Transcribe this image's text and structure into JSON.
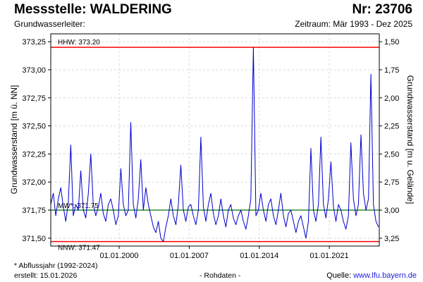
{
  "header": {
    "station_label": "Messstelle: WALDERING",
    "number_label": "Nr: 23706",
    "aquifer_label": "Grundwasserleiter:",
    "period_label": "Zeitraum: Mär 1993 - Dez 2025"
  },
  "footer": {
    "footnote": "* Abflussjahr (1992-2024)",
    "created": "erstellt:  15.01.2026",
    "raw": "- Rohdaten -",
    "source_prefix": "Quelle: ",
    "source_link": "www.lfu.bayern.de"
  },
  "colors": {
    "series": "#0000cc",
    "hhw": "#ff0000",
    "nnw": "#ff0000",
    "mw": "#2e8b2e",
    "grid": "#d9d9d9"
  },
  "chart_data": {
    "type": "line",
    "title": "",
    "ylabel": "Grundwasserstand [m ü. NN]",
    "y2label": "Grundwasserstand [m u. Gelände]",
    "ylim": [
      371.43,
      373.32
    ],
    "y2lim": [
      3.32,
      1.43
    ],
    "yticks": [
      371.5,
      371.75,
      372.0,
      372.25,
      372.5,
      372.75,
      373.0,
      373.25
    ],
    "ytick_labels": [
      "371,50",
      "371,75",
      "372,00",
      "372,25",
      "372,50",
      "372,75",
      "373,00",
      "373,25"
    ],
    "y2ticks": [
      3.25,
      3.0,
      2.75,
      2.5,
      2.25,
      2.0,
      1.75,
      1.5
    ],
    "y2tick_labels": [
      "3,25",
      "3,00",
      "2,75",
      "2,50",
      "2,25",
      "2,00",
      "1,75",
      "1,50"
    ],
    "xlim": [
      "1993-03-01",
      "2025-12-31"
    ],
    "xticks": [
      "2000-01-01",
      "2007-01-01",
      "2014-01-01",
      "2021-01-01"
    ],
    "xtick_labels": [
      "01.01.2000",
      "01.01.2007",
      "01.01.2014",
      "01.01.2021"
    ],
    "grid": true,
    "reference_lines": [
      {
        "key": "hhw",
        "label": "HHW: 373.20",
        "value": 373.2
      },
      {
        "key": "mw",
        "label": "MW*: 371.75",
        "value": 371.75
      },
      {
        "key": "nnw",
        "label": "NNW: 371.47",
        "value": 371.47
      }
    ],
    "series": [
      {
        "x": [
          "1993-03-01",
          "1993-06-01",
          "1993-09-01",
          "1993-12-01",
          "1994-03-01",
          "1994-06-01",
          "1994-09-01",
          "1994-12-01",
          "1995-03-01",
          "1995-06-01",
          "1995-09-01",
          "1995-12-01",
          "1996-03-01",
          "1996-06-01",
          "1996-09-01",
          "1996-12-01",
          "1997-03-01",
          "1997-06-01",
          "1997-09-01",
          "1997-12-01",
          "1998-03-01",
          "1998-06-01",
          "1998-09-01",
          "1998-12-01",
          "1999-03-01",
          "1999-06-01",
          "1999-09-01",
          "1999-12-01",
          "2000-03-01",
          "2000-06-01",
          "2000-09-01",
          "2000-12-01",
          "2001-03-01",
          "2001-06-01",
          "2001-09-01",
          "2001-12-01",
          "2002-03-01",
          "2002-06-01",
          "2002-09-01",
          "2002-12-01",
          "2003-03-01",
          "2003-06-01",
          "2003-09-01",
          "2003-12-01",
          "2004-03-01",
          "2004-06-01",
          "2004-09-01",
          "2004-12-01",
          "2005-03-01",
          "2005-06-01",
          "2005-09-01",
          "2005-12-01",
          "2006-03-01",
          "2006-06-01",
          "2006-09-01",
          "2006-12-01",
          "2007-03-01",
          "2007-06-01",
          "2007-09-01",
          "2007-12-01",
          "2008-03-01",
          "2008-06-01",
          "2008-09-01",
          "2008-12-01",
          "2009-03-01",
          "2009-06-01",
          "2009-09-01",
          "2009-12-01",
          "2010-03-01",
          "2010-06-01",
          "2010-09-01",
          "2010-12-01",
          "2011-03-01",
          "2011-06-01",
          "2011-09-01",
          "2011-12-01",
          "2012-03-01",
          "2012-06-01",
          "2012-09-01",
          "2012-12-01",
          "2013-03-01",
          "2013-06-01",
          "2013-09-01",
          "2013-12-01",
          "2014-03-01",
          "2014-06-01",
          "2014-09-01",
          "2014-12-01",
          "2015-03-01",
          "2015-06-01",
          "2015-09-01",
          "2015-12-01",
          "2016-03-01",
          "2016-06-01",
          "2016-09-01",
          "2016-12-01",
          "2017-03-01",
          "2017-06-01",
          "2017-09-01",
          "2017-12-01",
          "2018-03-01",
          "2018-06-01",
          "2018-09-01",
          "2018-12-01",
          "2019-03-01",
          "2019-06-01",
          "2019-09-01",
          "2019-12-01",
          "2020-03-01",
          "2020-06-01",
          "2020-09-01",
          "2020-12-01",
          "2021-03-01",
          "2021-06-01",
          "2021-09-01",
          "2021-12-01",
          "2022-03-01",
          "2022-06-01",
          "2022-09-01",
          "2022-12-01",
          "2023-03-01",
          "2023-06-01",
          "2023-09-01",
          "2023-12-01",
          "2024-03-01",
          "2024-06-01",
          "2024-09-01",
          "2024-12-01",
          "2025-03-01",
          "2025-06-01",
          "2025-09-01",
          "2025-12-01"
        ],
        "values": [
          371.8,
          371.9,
          371.7,
          371.85,
          371.95,
          371.78,
          371.65,
          371.82,
          372.33,
          371.7,
          371.8,
          371.75,
          372.1,
          371.75,
          371.68,
          371.9,
          372.25,
          371.8,
          371.7,
          371.78,
          371.9,
          371.72,
          371.65,
          371.8,
          371.85,
          371.75,
          371.62,
          371.7,
          372.12,
          371.8,
          371.7,
          371.75,
          372.53,
          371.8,
          371.68,
          371.85,
          372.2,
          371.75,
          371.95,
          371.8,
          371.7,
          371.6,
          371.55,
          371.65,
          371.5,
          371.47,
          371.6,
          371.7,
          371.85,
          371.7,
          371.62,
          371.8,
          372.15,
          371.75,
          371.65,
          371.78,
          371.8,
          371.7,
          371.62,
          371.75,
          372.4,
          371.78,
          371.65,
          371.8,
          371.9,
          371.72,
          371.62,
          371.7,
          371.85,
          371.7,
          371.6,
          371.75,
          371.8,
          371.68,
          371.62,
          371.7,
          371.75,
          371.65,
          371.58,
          371.7,
          371.85,
          373.2,
          371.7,
          371.75,
          371.9,
          371.75,
          371.65,
          371.8,
          371.85,
          371.7,
          371.62,
          371.75,
          371.9,
          371.7,
          371.6,
          371.72,
          371.75,
          371.65,
          371.55,
          371.65,
          371.7,
          371.6,
          371.5,
          371.65,
          372.3,
          371.75,
          371.65,
          371.8,
          372.4,
          371.8,
          371.68,
          371.85,
          372.18,
          371.78,
          371.65,
          371.8,
          371.75,
          371.65,
          371.58,
          371.7,
          372.35,
          371.85,
          371.7,
          371.8,
          372.42,
          371.9,
          371.75,
          371.85,
          372.96,
          371.8,
          371.65,
          371.6
        ],
        "label": ""
      }
    ]
  }
}
